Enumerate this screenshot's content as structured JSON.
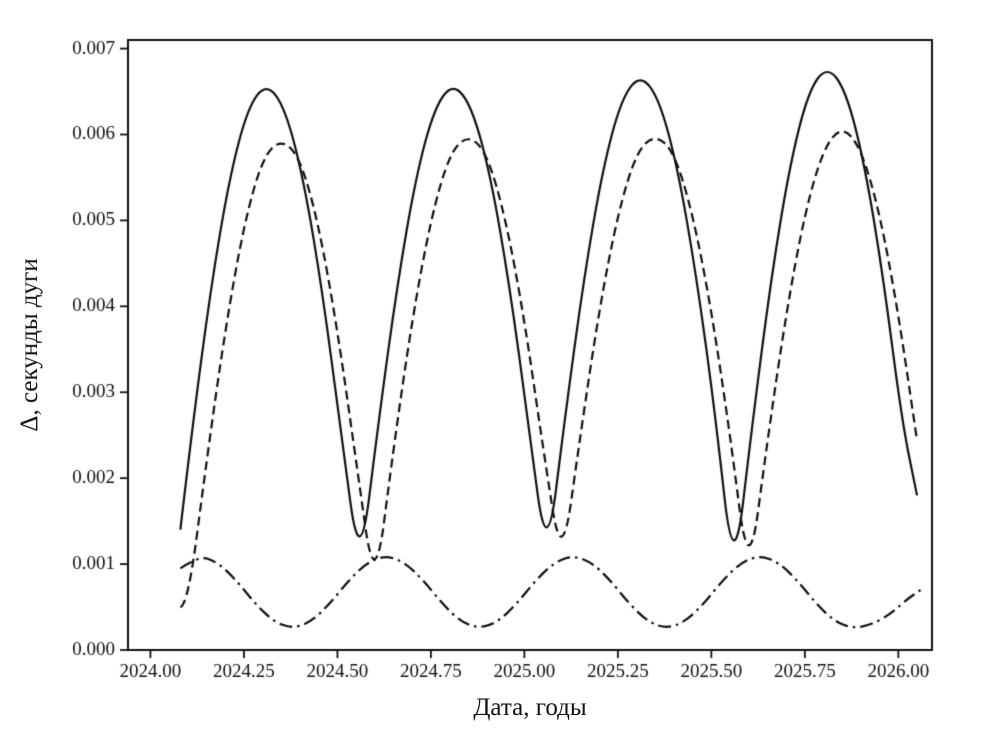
{
  "style": {
    "background": "#ffffff",
    "line_color": "#111111"
  },
  "chart_data": {
    "type": "line",
    "title": "",
    "xlabel": "Дата, годы",
    "ylabel": "Δ, секунды дуги",
    "grid": false,
    "legend": "none",
    "xlim": [
      2023.94,
      2026.09
    ],
    "ylim": [
      0.0,
      0.0071
    ],
    "xticks": [
      2024.0,
      2024.25,
      2024.5,
      2024.75,
      2025.0,
      2025.25,
      2025.5,
      2025.75,
      2026.0
    ],
    "xtick_labels": [
      "2024.00",
      "2024.25",
      "2024.50",
      "2024.75",
      "2025.00",
      "2025.25",
      "2025.50",
      "2025.75",
      "2026.00"
    ],
    "yticks": [
      0.0,
      0.001,
      0.002,
      0.003,
      0.004,
      0.005,
      0.006,
      0.007
    ],
    "ytick_labels": [
      "0.000",
      "0.001",
      "0.002",
      "0.003",
      "0.004",
      "0.005",
      "0.006",
      "0.007"
    ],
    "series": [
      {
        "name": "series-solid",
        "linestyle": "solid",
        "x": [
          2024.08,
          2024.11,
          2024.16,
          2024.21,
          2024.26,
          2024.31,
          2024.36,
          2024.41,
          2024.46,
          2024.51,
          2024.56,
          2024.61,
          2024.66,
          2024.71,
          2024.76,
          2024.81,
          2024.86,
          2024.91,
          2024.96,
          2025.01,
          2025.06,
          2025.11,
          2025.16,
          2025.21,
          2025.26,
          2025.31,
          2025.36,
          2025.41,
          2025.46,
          2025.51,
          2025.56,
          2025.61,
          2025.66,
          2025.71,
          2025.76,
          2025.81,
          2025.86,
          2025.91,
          2025.96,
          2026.01,
          2026.05
        ],
        "y": [
          0.0014,
          0.00252,
          0.00417,
          0.00547,
          0.00631,
          0.0066,
          0.00631,
          0.00547,
          0.00417,
          0.00252,
          0.0009,
          0.00266,
          0.00425,
          0.00551,
          0.00632,
          0.0066,
          0.00632,
          0.00551,
          0.00425,
          0.00266,
          0.001,
          0.00276,
          0.00435,
          0.00561,
          0.00642,
          0.0067,
          0.00642,
          0.00561,
          0.00435,
          0.00276,
          0.0008,
          0.00265,
          0.00433,
          0.00565,
          0.00651,
          0.0068,
          0.00651,
          0.00565,
          0.00433,
          0.00265,
          0.0018
        ]
      },
      {
        "name": "series-dashed",
        "linestyle": "dashed",
        "x": [
          2024.08,
          2024.1,
          2024.15,
          2024.2,
          2024.25,
          2024.3,
          2024.35,
          2024.4,
          2024.45,
          2024.5,
          2024.55,
          2024.6,
          2024.65,
          2024.7,
          2024.75,
          2024.8,
          2024.85,
          2024.9,
          2024.95,
          2025.0,
          2025.05,
          2025.1,
          2025.15,
          2025.2,
          2025.25,
          2025.3,
          2025.35,
          2025.4,
          2025.45,
          2025.5,
          2025.55,
          2025.6,
          2025.65,
          2025.7,
          2025.75,
          2025.8,
          2025.85,
          2025.9,
          2025.95,
          2026.0,
          2026.05
        ],
        "y": [
          0.0005,
          0.00052,
          0.0022,
          0.00373,
          0.00495,
          0.00573,
          0.00595,
          0.00573,
          0.00495,
          0.00373,
          0.0022,
          0.00065,
          0.00235,
          0.00385,
          0.00502,
          0.00578,
          0.006,
          0.00578,
          0.00502,
          0.00385,
          0.00235,
          0.00095,
          0.00251,
          0.00396,
          0.00508,
          0.0058,
          0.006,
          0.0058,
          0.00508,
          0.00396,
          0.00251,
          0.0008,
          0.00244,
          0.00392,
          0.00509,
          0.00584,
          0.0061,
          0.00584,
          0.00509,
          0.00392,
          0.00244
        ]
      },
      {
        "name": "series-dashdot",
        "linestyle": "dashdot",
        "x": [
          2024.08,
          2024.13,
          2024.18,
          2024.23,
          2024.28,
          2024.33,
          2024.38,
          2024.43,
          2024.48,
          2024.53,
          2024.58,
          2024.63,
          2024.68,
          2024.73,
          2024.78,
          2024.83,
          2024.88,
          2024.93,
          2024.98,
          2025.03,
          2025.08,
          2025.13,
          2025.18,
          2025.23,
          2025.28,
          2025.33,
          2025.38,
          2025.43,
          2025.48,
          2025.53,
          2025.58,
          2025.63,
          2025.68,
          2025.73,
          2025.78,
          2025.83,
          2025.88,
          2025.93,
          2025.98,
          2026.02,
          2026.06
        ],
        "y": [
          0.00095,
          0.0011,
          0.00102,
          0.00081,
          0.00054,
          0.00033,
          0.00025,
          0.00033,
          0.00054,
          0.00081,
          0.00102,
          0.0011,
          0.00102,
          0.00081,
          0.00054,
          0.00033,
          0.00025,
          0.00033,
          0.00054,
          0.00081,
          0.00102,
          0.0011,
          0.00102,
          0.00081,
          0.00054,
          0.00033,
          0.00025,
          0.00033,
          0.00054,
          0.00081,
          0.00102,
          0.0011,
          0.00102,
          0.00081,
          0.00054,
          0.00033,
          0.00025,
          0.0003,
          0.00042,
          0.00058,
          0.0007
        ]
      }
    ]
  }
}
